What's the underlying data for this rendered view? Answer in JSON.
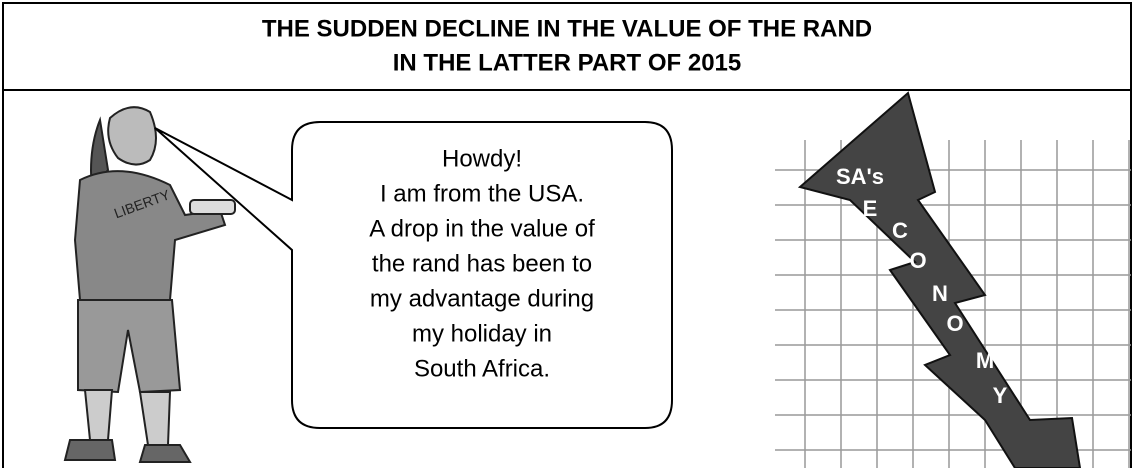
{
  "header": {
    "title_lines": [
      "THE SUDDEN DECLINE IN THE VALUE OF THE RAND",
      "IN THE LATTER PART OF 2015"
    ]
  },
  "speech_bubble": {
    "lines": [
      "Howdy!",
      "I am from the USA.",
      "A drop in the value of",
      "the rand has been to",
      "my advantage during",
      "my holiday in",
      "South Africa."
    ]
  },
  "graphic": {
    "label": "SA's",
    "letters": [
      "E",
      "C",
      "O",
      "N",
      "O",
      "M",
      "Y"
    ]
  }
}
